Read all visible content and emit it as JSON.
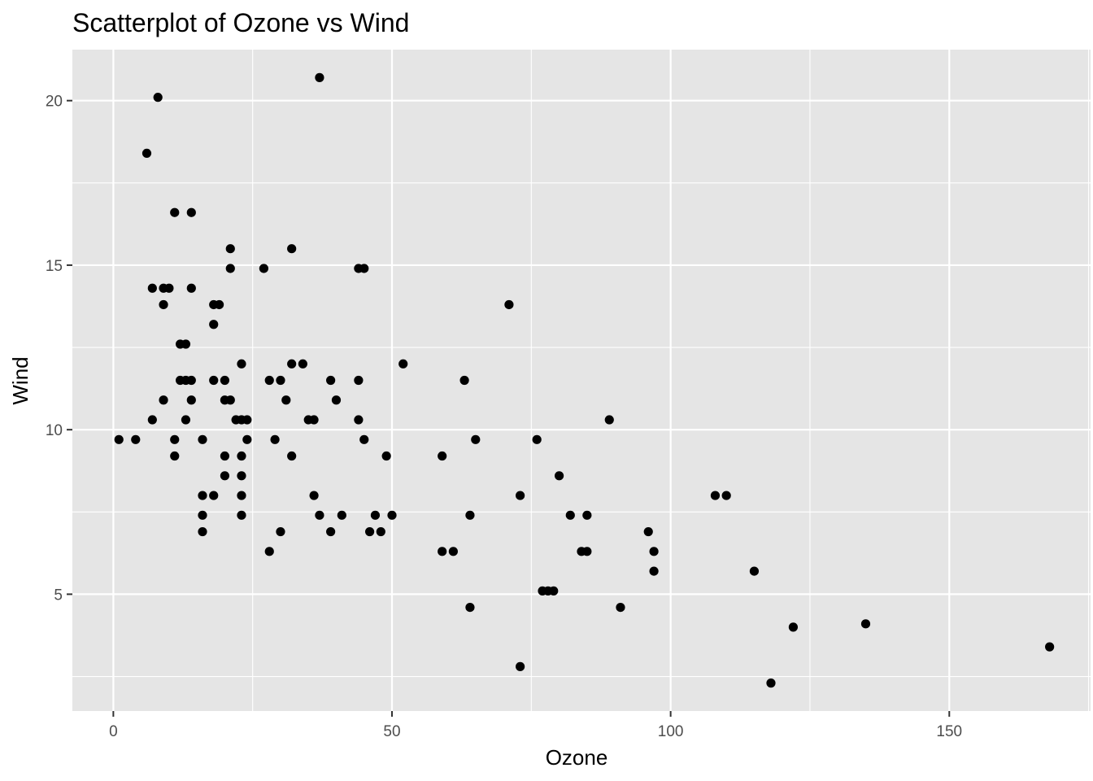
{
  "chart_data": {
    "type": "scatter",
    "title": "Scatterplot of Ozone vs Wind",
    "xlabel": "Ozone",
    "ylabel": "Wind",
    "xlim": [
      -7.35,
      175.35
    ],
    "ylim": [
      1.45,
      21.55
    ],
    "x_ticks": [
      0,
      50,
      100,
      150
    ],
    "y_ticks": [
      5,
      10,
      15,
      20
    ],
    "x_tick_labels": [
      "0",
      "50",
      "100",
      "150"
    ],
    "y_tick_labels": [
      "5",
      "10",
      "15",
      "20"
    ],
    "grid": true,
    "colors": {
      "panel": "#e5e5e5",
      "point": "#000000"
    },
    "points": [
      {
        "x": 1,
        "y": 9.7
      },
      {
        "x": 4,
        "y": 9.7
      },
      {
        "x": 6,
        "y": 18.4
      },
      {
        "x": 7,
        "y": 14.3
      },
      {
        "x": 7,
        "y": 10.3
      },
      {
        "x": 8,
        "y": 20.1
      },
      {
        "x": 9,
        "y": 14.3
      },
      {
        "x": 9,
        "y": 13.8
      },
      {
        "x": 9,
        "y": 10.9
      },
      {
        "x": 10,
        "y": 14.3
      },
      {
        "x": 11,
        "y": 16.6
      },
      {
        "x": 11,
        "y": 9.7
      },
      {
        "x": 11,
        "y": 9.2
      },
      {
        "x": 12,
        "y": 12.6
      },
      {
        "x": 12,
        "y": 11.5
      },
      {
        "x": 13,
        "y": 12.6
      },
      {
        "x": 13,
        "y": 11.5
      },
      {
        "x": 13,
        "y": 10.3
      },
      {
        "x": 14,
        "y": 16.6
      },
      {
        "x": 14,
        "y": 14.3
      },
      {
        "x": 14,
        "y": 11.5
      },
      {
        "x": 14,
        "y": 10.9
      },
      {
        "x": 16,
        "y": 9.7
      },
      {
        "x": 16,
        "y": 8.0
      },
      {
        "x": 16,
        "y": 7.4
      },
      {
        "x": 16,
        "y": 6.9
      },
      {
        "x": 18,
        "y": 13.8
      },
      {
        "x": 18,
        "y": 13.2
      },
      {
        "x": 18,
        "y": 11.5
      },
      {
        "x": 18,
        "y": 8.0
      },
      {
        "x": 19,
        "y": 13.8
      },
      {
        "x": 20,
        "y": 11.5
      },
      {
        "x": 20,
        "y": 10.9
      },
      {
        "x": 20,
        "y": 9.2
      },
      {
        "x": 20,
        "y": 8.6
      },
      {
        "x": 21,
        "y": 15.5
      },
      {
        "x": 21,
        "y": 14.9
      },
      {
        "x": 21,
        "y": 10.9
      },
      {
        "x": 22,
        "y": 10.3
      },
      {
        "x": 23,
        "y": 12.0
      },
      {
        "x": 23,
        "y": 10.3
      },
      {
        "x": 23,
        "y": 9.2
      },
      {
        "x": 23,
        "y": 8.6
      },
      {
        "x": 23,
        "y": 8.0
      },
      {
        "x": 23,
        "y": 7.4
      },
      {
        "x": 24,
        "y": 10.3
      },
      {
        "x": 24,
        "y": 9.7
      },
      {
        "x": 27,
        "y": 14.9
      },
      {
        "x": 28,
        "y": 11.5
      },
      {
        "x": 28,
        "y": 6.3
      },
      {
        "x": 29,
        "y": 9.7
      },
      {
        "x": 30,
        "y": 11.5
      },
      {
        "x": 30,
        "y": 6.9
      },
      {
        "x": 31,
        "y": 10.9
      },
      {
        "x": 32,
        "y": 15.5
      },
      {
        "x": 32,
        "y": 12.0
      },
      {
        "x": 32,
        "y": 9.2
      },
      {
        "x": 34,
        "y": 12.0
      },
      {
        "x": 35,
        "y": 10.3
      },
      {
        "x": 36,
        "y": 10.3
      },
      {
        "x": 36,
        "y": 8.0
      },
      {
        "x": 37,
        "y": 20.7
      },
      {
        "x": 37,
        "y": 7.4
      },
      {
        "x": 39,
        "y": 11.5
      },
      {
        "x": 39,
        "y": 6.9
      },
      {
        "x": 40,
        "y": 10.9
      },
      {
        "x": 41,
        "y": 7.4
      },
      {
        "x": 44,
        "y": 14.9
      },
      {
        "x": 44,
        "y": 11.5
      },
      {
        "x": 44,
        "y": 10.3
      },
      {
        "x": 45,
        "y": 14.9
      },
      {
        "x": 45,
        "y": 9.7
      },
      {
        "x": 46,
        "y": 6.9
      },
      {
        "x": 47,
        "y": 7.4
      },
      {
        "x": 48,
        "y": 6.9
      },
      {
        "x": 49,
        "y": 9.2
      },
      {
        "x": 50,
        "y": 7.4
      },
      {
        "x": 52,
        "y": 12.0
      },
      {
        "x": 59,
        "y": 9.2
      },
      {
        "x": 59,
        "y": 6.3
      },
      {
        "x": 61,
        "y": 6.3
      },
      {
        "x": 63,
        "y": 11.5
      },
      {
        "x": 64,
        "y": 7.4
      },
      {
        "x": 64,
        "y": 4.6
      },
      {
        "x": 65,
        "y": 9.7
      },
      {
        "x": 71,
        "y": 13.8
      },
      {
        "x": 73,
        "y": 8.0
      },
      {
        "x": 73,
        "y": 2.8
      },
      {
        "x": 76,
        "y": 9.7
      },
      {
        "x": 77,
        "y": 5.1
      },
      {
        "x": 78,
        "y": 5.1
      },
      {
        "x": 79,
        "y": 5.1
      },
      {
        "x": 80,
        "y": 8.6
      },
      {
        "x": 82,
        "y": 7.4
      },
      {
        "x": 84,
        "y": 6.3
      },
      {
        "x": 85,
        "y": 7.4
      },
      {
        "x": 85,
        "y": 6.3
      },
      {
        "x": 89,
        "y": 10.3
      },
      {
        "x": 91,
        "y": 4.6
      },
      {
        "x": 96,
        "y": 6.9
      },
      {
        "x": 97,
        "y": 6.3
      },
      {
        "x": 97,
        "y": 5.7
      },
      {
        "x": 108,
        "y": 8.0
      },
      {
        "x": 110,
        "y": 8.0
      },
      {
        "x": 115,
        "y": 5.7
      },
      {
        "x": 118,
        "y": 2.3
      },
      {
        "x": 122,
        "y": 4.0
      },
      {
        "x": 135,
        "y": 4.1
      },
      {
        "x": 168,
        "y": 3.4
      }
    ]
  }
}
